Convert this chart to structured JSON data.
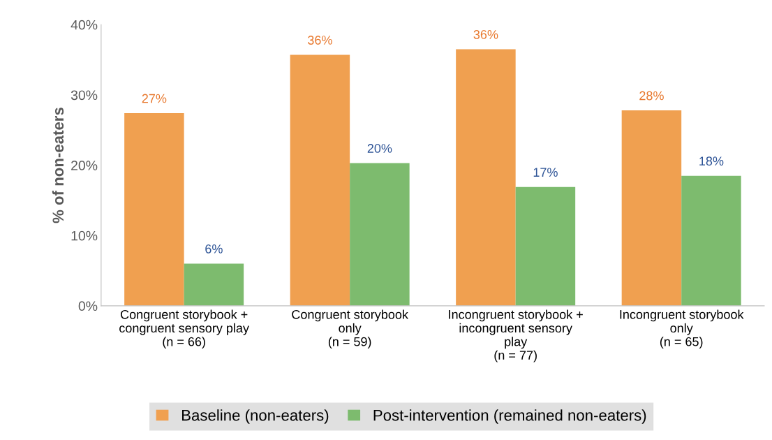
{
  "chart_data": {
    "type": "bar",
    "ylabel": "% of non-eaters",
    "categories": [
      "Congruent storybook +\ncongruent sensory play\n(n = 66)",
      "Congruent storybook\nonly\n(n = 59)",
      "Incongruent storybook +\nincongruent sensory\nplay\n(n = 77)",
      "Incongruent storybook\nonly\n(n = 65)"
    ],
    "series": [
      {
        "name": "Baseline (non-eaters)",
        "color": "#f0a050",
        "values": [
          27.4,
          35.7,
          36.5,
          27.8
        ],
        "value_labels": [
          "27%",
          "36%",
          "36%",
          "28%"
        ]
      },
      {
        "name": "Post-intervention (remained non-eaters)",
        "color": "#7dbb6e",
        "values": [
          6.0,
          20.3,
          16.9,
          18.5
        ],
        "value_labels": [
          "6%",
          "20%",
          "17%",
          "18%"
        ]
      }
    ],
    "ylim": [
      0,
      40
    ],
    "yticks": [
      {
        "value": 0,
        "label": "0%"
      },
      {
        "value": 10,
        "label": "10%"
      },
      {
        "value": 20,
        "label": "20%"
      },
      {
        "value": 30,
        "label": "30%"
      },
      {
        "value": 40,
        "label": "40%"
      }
    ],
    "grid": false,
    "legend": "bottom"
  }
}
